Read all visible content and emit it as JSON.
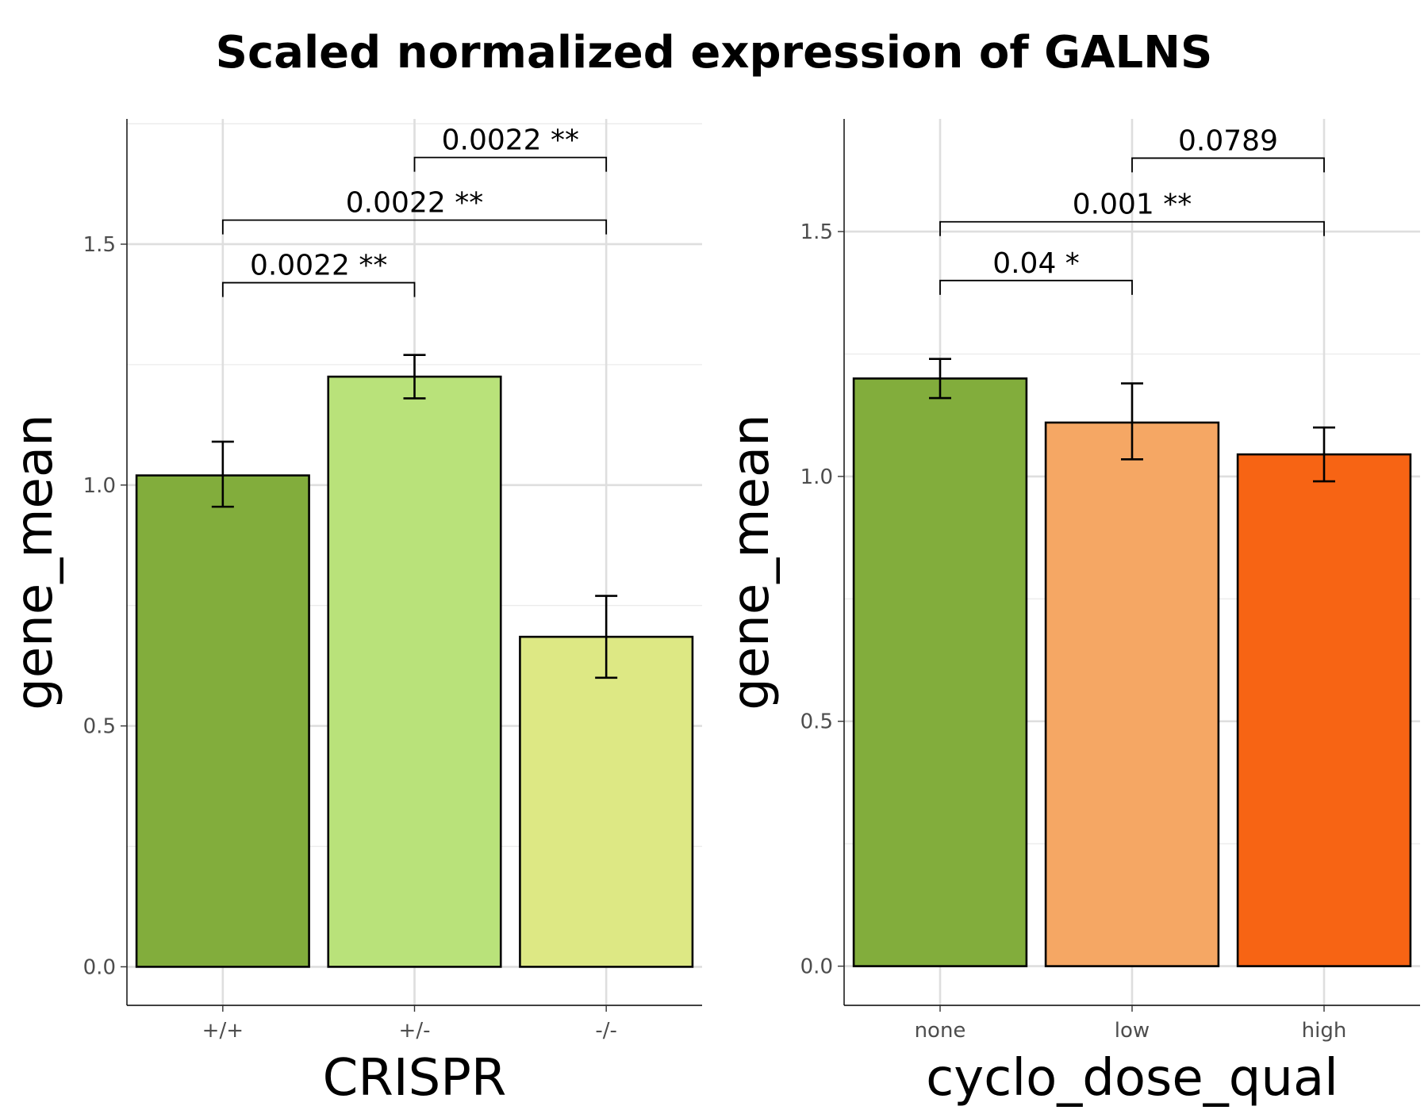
{
  "title": "Scaled normalized expression of GALNS",
  "chart_data": [
    {
      "type": "bar",
      "xlabel": "CRISPR",
      "ylabel": "gene_mean",
      "categories": [
        "+/+",
        "+/-",
        "-/-"
      ],
      "values": [
        1.02,
        1.225,
        0.685
      ],
      "error_low": [
        0.955,
        1.18,
        0.6
      ],
      "error_high": [
        1.09,
        1.27,
        0.77
      ],
      "colors": [
        "#82ad3c",
        "#b9e27a",
        "#dde884"
      ],
      "ylim": [
        -0.08,
        1.76
      ],
      "yticks": [
        0.0,
        0.5,
        1.0,
        1.5
      ],
      "ytick_labels": [
        "0.0",
        "0.5",
        "1.0",
        "1.5"
      ],
      "grid": true,
      "comparisons": [
        {
          "from": 0,
          "to": 1,
          "label": "0.0022 **",
          "y": 1.42
        },
        {
          "from": 0,
          "to": 2,
          "label": "0.0022 **",
          "y": 1.55
        },
        {
          "from": 1,
          "to": 2,
          "label": "0.0022 **",
          "y": 1.68
        }
      ]
    },
    {
      "type": "bar",
      "xlabel": "cyclo_dose_qual",
      "ylabel": "gene_mean",
      "categories": [
        "none",
        "low",
        "high"
      ],
      "values": [
        1.2,
        1.11,
        1.045
      ],
      "error_low": [
        1.16,
        1.035,
        0.99
      ],
      "error_high": [
        1.24,
        1.19,
        1.1
      ],
      "colors": [
        "#82ad3c",
        "#f5a764",
        "#f76414"
      ],
      "ylim": [
        -0.08,
        1.73
      ],
      "yticks": [
        0.0,
        0.5,
        1.0,
        1.5
      ],
      "ytick_labels": [
        "0.0",
        "0.5",
        "1.0",
        "1.5"
      ],
      "grid": true,
      "comparisons": [
        {
          "from": 0,
          "to": 1,
          "label": "0.04 *",
          "y": 1.4
        },
        {
          "from": 0,
          "to": 2,
          "label": "0.001 **",
          "y": 1.52
        },
        {
          "from": 1,
          "to": 2,
          "label": "0.0789",
          "y": 1.65
        }
      ]
    }
  ]
}
